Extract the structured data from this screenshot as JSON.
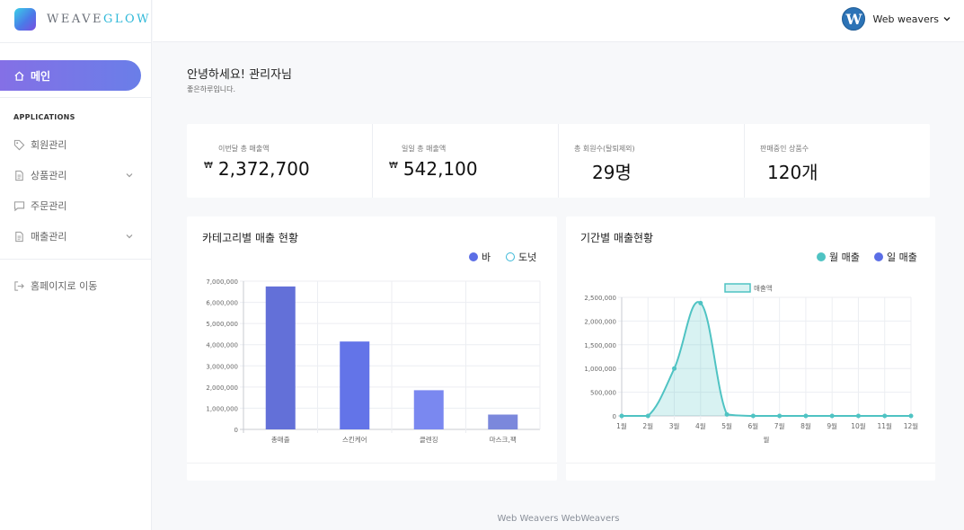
{
  "brand": {
    "part1": "WEAVE",
    "part2": "GLOW"
  },
  "sidebar": {
    "main_label": "메인",
    "section_label": "APPLICATIONS",
    "items": [
      {
        "label": "회원관리",
        "icon": "tag-icon",
        "expandable": false
      },
      {
        "label": "상품관리",
        "icon": "document-icon",
        "expandable": true
      },
      {
        "label": "주문관리",
        "icon": "chat-icon",
        "expandable": false
      },
      {
        "label": "매출관리",
        "icon": "document-icon",
        "expandable": true
      }
    ],
    "homepage_label": "홈페이지로 이동"
  },
  "header": {
    "avatar_letter": "W",
    "user_name": "Web weavers"
  },
  "greeting": {
    "title": "안녕하세요! 관리자님",
    "subtitle": "좋은하루입니다."
  },
  "stats": [
    {
      "label": "이번달 총 매출액",
      "currency": "₩",
      "value": "2,372,700"
    },
    {
      "label": "일일 총 매출액",
      "currency": "₩",
      "value": "542,100"
    },
    {
      "label": "총 회원수(탈퇴제외)",
      "currency": "",
      "value": "29명"
    },
    {
      "label": "판매중인 상품수",
      "currency": "",
      "value": "120개"
    }
  ],
  "category_card": {
    "title": "카테고리별 매출 현황",
    "legend": [
      {
        "label": "바",
        "color": "#5b6ee6"
      },
      {
        "label": "도넛",
        "color": "#3ab8d8"
      }
    ]
  },
  "period_card": {
    "title": "기간별 매출현황",
    "legend": [
      {
        "label": "월 매출",
        "color": "#4fc3c3"
      },
      {
        "label": "일 매출",
        "color": "#5b6ee6"
      }
    ]
  },
  "chart_data": [
    {
      "type": "bar",
      "categories": [
        "총매출",
        "스킨케어",
        "클렌징",
        "마스크,팩"
      ],
      "values": [
        6750000,
        4150000,
        1850000,
        700000
      ],
      "colors": [
        "#6370d8",
        "#6374e8",
        "#7a88f0",
        "#7b88dc"
      ],
      "ylim": [
        0,
        7000000
      ],
      "yticks": [
        "0",
        "1,000,000",
        "2,000,000",
        "3,000,000",
        "4,000,000",
        "5,000,000",
        "6,000,000",
        "7,000,000"
      ],
      "grid": true
    },
    {
      "type": "area",
      "series": [
        {
          "name": "매출액",
          "values": [
            0,
            0,
            1000000,
            2380000,
            30000,
            0,
            0,
            0,
            0,
            0,
            0,
            0
          ]
        }
      ],
      "categories": [
        "1월",
        "2월",
        "3월",
        "4월",
        "5월",
        "6월",
        "7월",
        "8월",
        "9월",
        "10월",
        "11월",
        "12월"
      ],
      "xlabel": "월",
      "ylim": [
        0,
        2500000
      ],
      "yticks": [
        "0",
        "500,000",
        "1,000,000",
        "1,500,000",
        "2,000,000",
        "2,500,000"
      ],
      "color": "#4fc3c3",
      "grid": true
    }
  ],
  "footer": {
    "text": "Web Weavers WebWeavers"
  }
}
